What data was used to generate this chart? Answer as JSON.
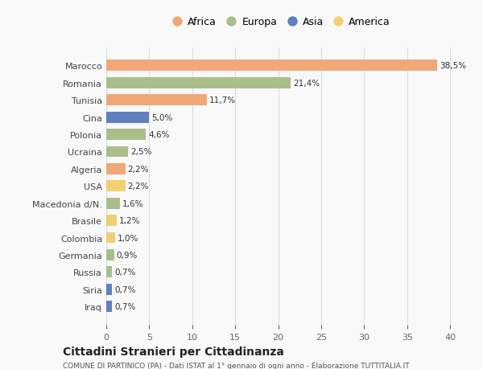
{
  "countries": [
    "Marocco",
    "Romania",
    "Tunisia",
    "Cina",
    "Polonia",
    "Ucraina",
    "Algeria",
    "USA",
    "Macedonia d/N.",
    "Brasile",
    "Colombia",
    "Germania",
    "Russia",
    "Siria",
    "Iraq"
  ],
  "values": [
    38.5,
    21.4,
    11.7,
    5.0,
    4.6,
    2.5,
    2.2,
    2.2,
    1.6,
    1.2,
    1.0,
    0.9,
    0.7,
    0.7,
    0.7
  ],
  "labels": [
    "38,5%",
    "21,4%",
    "11,7%",
    "5,0%",
    "4,6%",
    "2,5%",
    "2,2%",
    "2,2%",
    "1,6%",
    "1,2%",
    "1,0%",
    "0,9%",
    "0,7%",
    "0,7%",
    "0,7%"
  ],
  "continents": [
    "Africa",
    "Europa",
    "Africa",
    "Asia",
    "Europa",
    "Europa",
    "Africa",
    "America",
    "Europa",
    "America",
    "America",
    "Europa",
    "Europa",
    "Asia",
    "Asia"
  ],
  "continent_colors": {
    "Africa": "#F0A878",
    "Europa": "#AABE8C",
    "Asia": "#6080C0",
    "America": "#F0D070"
  },
  "legend_order": [
    "Africa",
    "Europa",
    "Asia",
    "America"
  ],
  "title1": "Cittadini Stranieri per Cittadinanza",
  "title2": "COMUNE DI PARTINICO (PA) - Dati ISTAT al 1° gennaio di ogni anno - Elaborazione TUTTITALIA.IT",
  "xlim": [
    0,
    41
  ],
  "xticks": [
    0,
    5,
    10,
    15,
    20,
    25,
    30,
    35,
    40
  ],
  "background_color": "#f9f9f9",
  "grid_color": "#dddddd"
}
